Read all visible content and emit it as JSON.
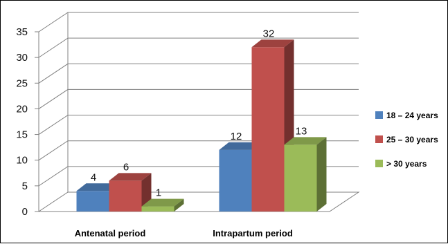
{
  "chart_data": {
    "type": "bar",
    "categories": [
      "Antenatal period",
      "Intrapartum period"
    ],
    "series": [
      {
        "name": "18 – 24 years",
        "values": [
          4,
          12
        ],
        "color": "#4F81BD"
      },
      {
        "name": "25 – 30 years",
        "values": [
          6,
          32
        ],
        "color": "#C0504D"
      },
      {
        "name": "> 30 years",
        "values": [
          1,
          13
        ],
        "color": "#9BBB59"
      }
    ],
    "ylim": [
      0,
      35
    ],
    "yticks": [
      0,
      5,
      10,
      15,
      20,
      25,
      30,
      35
    ],
    "grid": true,
    "three_d": true,
    "data_labels": true,
    "legend_position": "right",
    "title": "",
    "xlabel": "",
    "ylabel": ""
  }
}
